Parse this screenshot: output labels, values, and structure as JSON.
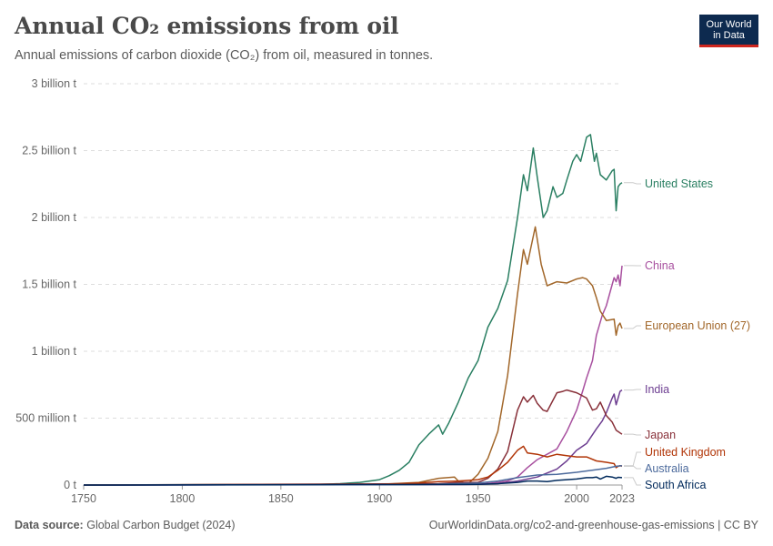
{
  "header": {
    "title": "Annual CO₂ emissions from oil",
    "subtitle": "Annual emissions of carbon dioxide (CO₂) from oil, measured in tonnes."
  },
  "logo": {
    "line1": "Our World",
    "line2": "in Data"
  },
  "footer": {
    "source_label": "Data source:",
    "source": "Global Carbon Budget (2024)",
    "url": "OurWorldinData.org/co2-and-greenhouse-gas-emissions | CC BY"
  },
  "colors": {
    "brand": "#0d2a4f",
    "brand_accent": "#ce261e"
  },
  "chart_data": {
    "type": "line",
    "title": "Annual CO₂ emissions from oil",
    "xlabel": "",
    "ylabel": "",
    "xlim": [
      1750,
      2023
    ],
    "ylim": [
      0,
      3000000000
    ],
    "x_ticks": [
      {
        "value": 1750,
        "label": "1750"
      },
      {
        "value": 1800,
        "label": "1800"
      },
      {
        "value": 1850,
        "label": "1850"
      },
      {
        "value": 1900,
        "label": "1900"
      },
      {
        "value": 1950,
        "label": "1950"
      },
      {
        "value": 2000,
        "label": "2000"
      },
      {
        "value": 2023,
        "label": "2023"
      }
    ],
    "y_ticks": [
      {
        "value": 0,
        "label": "0 t"
      },
      {
        "value": 500000000,
        "label": "500 million t"
      },
      {
        "value": 1000000000,
        "label": "1 billion t"
      },
      {
        "value": 1500000000,
        "label": "1.5 billion t"
      },
      {
        "value": 2000000000,
        "label": "2 billion t"
      },
      {
        "value": 2500000000,
        "label": "2.5 billion t"
      },
      {
        "value": 3000000000,
        "label": "3 billion t"
      }
    ],
    "grid": true,
    "legend": "right (inline labels)",
    "series": [
      {
        "name": "United States",
        "color": "#2a7f62",
        "x": [
          1750,
          1870,
          1880,
          1890,
          1900,
          1905,
          1910,
          1915,
          1920,
          1925,
          1930,
          1932,
          1935,
          1940,
          1945,
          1950,
          1955,
          1960,
          1965,
          1970,
          1973,
          1975,
          1978,
          1980,
          1983,
          1985,
          1988,
          1990,
          1993,
          1995,
          1998,
          2000,
          2002,
          2005,
          2007,
          2009,
          2010,
          2012,
          2015,
          2018,
          2019,
          2020,
          2021,
          2022,
          2023
        ],
        "y": [
          0,
          5000000,
          10000000,
          20000000,
          40000000,
          70000000,
          110000000,
          170000000,
          300000000,
          380000000,
          450000000,
          380000000,
          460000000,
          620000000,
          800000000,
          930000000,
          1180000000,
          1320000000,
          1530000000,
          2000000000,
          2320000000,
          2200000000,
          2520000000,
          2300000000,
          2000000000,
          2050000000,
          2230000000,
          2150000000,
          2180000000,
          2280000000,
          2420000000,
          2470000000,
          2420000000,
          2600000000,
          2620000000,
          2420000000,
          2480000000,
          2320000000,
          2280000000,
          2350000000,
          2360000000,
          2050000000,
          2230000000,
          2250000000,
          2260000000
        ]
      },
      {
        "name": "China",
        "color": "#a8509f",
        "x": [
          1750,
          1950,
          1960,
          1965,
          1970,
          1975,
          1980,
          1985,
          1990,
          1995,
          2000,
          2003,
          2005,
          2008,
          2010,
          2013,
          2015,
          2018,
          2019,
          2020,
          2021,
          2022,
          2023
        ],
        "y": [
          0,
          5000000,
          20000000,
          30000000,
          60000000,
          130000000,
          190000000,
          230000000,
          270000000,
          400000000,
          560000000,
          700000000,
          800000000,
          930000000,
          1120000000,
          1270000000,
          1340000000,
          1500000000,
          1550000000,
          1520000000,
          1570000000,
          1490000000,
          1640000000
        ]
      },
      {
        "name": "European Union (27)",
        "color": "#a2672a",
        "x": [
          1750,
          1900,
          1920,
          1930,
          1938,
          1940,
          1945,
          1950,
          1955,
          1960,
          1965,
          1970,
          1973,
          1975,
          1979,
          1982,
          1985,
          1990,
          1995,
          2000,
          2003,
          2005,
          2008,
          2010,
          2012,
          2015,
          2019,
          2020,
          2021,
          2022,
          2023
        ],
        "y": [
          0,
          5000000,
          20000000,
          50000000,
          60000000,
          30000000,
          10000000,
          80000000,
          200000000,
          400000000,
          820000000,
          1430000000,
          1760000000,
          1650000000,
          1930000000,
          1650000000,
          1490000000,
          1520000000,
          1510000000,
          1540000000,
          1550000000,
          1540000000,
          1490000000,
          1400000000,
          1300000000,
          1230000000,
          1240000000,
          1120000000,
          1190000000,
          1210000000,
          1170000000
        ]
      },
      {
        "name": "India",
        "color": "#6d3e91",
        "x": [
          1750,
          1950,
          1960,
          1970,
          1980,
          1990,
          1995,
          2000,
          2005,
          2010,
          2013,
          2015,
          2018,
          2019,
          2020,
          2021,
          2022,
          2023
        ],
        "y": [
          0,
          5000000,
          10000000,
          30000000,
          60000000,
          120000000,
          180000000,
          260000000,
          310000000,
          420000000,
          480000000,
          540000000,
          650000000,
          680000000,
          600000000,
          650000000,
          700000000,
          710000000
        ]
      },
      {
        "name": "Japan",
        "color": "#883039",
        "x": [
          1750,
          1930,
          1940,
          1950,
          1955,
          1960,
          1965,
          1970,
          1973,
          1975,
          1978,
          1980,
          1983,
          1985,
          1990,
          1993,
          1995,
          2000,
          2005,
          2008,
          2010,
          2012,
          2015,
          2018,
          2020,
          2021,
          2022,
          2023
        ],
        "y": [
          0,
          10000000,
          20000000,
          20000000,
          50000000,
          120000000,
          250000000,
          560000000,
          660000000,
          620000000,
          670000000,
          610000000,
          560000000,
          550000000,
          690000000,
          700000000,
          710000000,
          690000000,
          650000000,
          560000000,
          570000000,
          620000000,
          520000000,
          470000000,
          410000000,
          400000000,
          390000000,
          380000000
        ]
      },
      {
        "name": "United Kingdom",
        "color": "#b13507",
        "x": [
          1750,
          1900,
          1920,
          1930,
          1940,
          1950,
          1955,
          1960,
          1965,
          1970,
          1973,
          1975,
          1980,
          1985,
          1990,
          1995,
          2000,
          2005,
          2010,
          2015,
          2019,
          2020,
          2021,
          2022,
          2023
        ],
        "y": [
          0,
          5000000,
          15000000,
          25000000,
          30000000,
          40000000,
          60000000,
          110000000,
          170000000,
          260000000,
          290000000,
          240000000,
          230000000,
          210000000,
          230000000,
          220000000,
          210000000,
          210000000,
          180000000,
          170000000,
          160000000,
          130000000,
          140000000,
          145000000,
          140000000
        ]
      },
      {
        "name": "Australia",
        "color": "#4c6a9c",
        "x": [
          1750,
          1920,
          1950,
          1960,
          1970,
          1980,
          1990,
          2000,
          2010,
          2015,
          2020,
          2023
        ],
        "y": [
          0,
          2000000,
          15000000,
          30000000,
          55000000,
          75000000,
          80000000,
          95000000,
          115000000,
          125000000,
          140000000,
          145000000
        ]
      },
      {
        "name": "South Africa",
        "color": "#00295b",
        "x": [
          1750,
          1950,
          1960,
          1970,
          1975,
          1980,
          1985,
          1990,
          1995,
          2000,
          2005,
          2008,
          2010,
          2012,
          2015,
          2018,
          2020,
          2021,
          2023
        ],
        "y": [
          0,
          5000000,
          10000000,
          20000000,
          30000000,
          30000000,
          25000000,
          35000000,
          40000000,
          45000000,
          55000000,
          55000000,
          60000000,
          45000000,
          65000000,
          60000000,
          50000000,
          58000000,
          55000000
        ]
      }
    ]
  }
}
